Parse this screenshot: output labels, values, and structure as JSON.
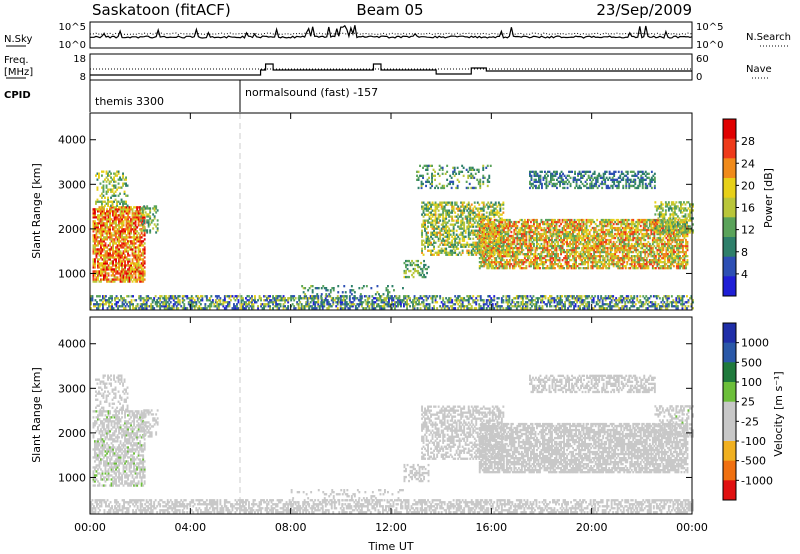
{
  "header": {
    "radar": "Saskatoon (fitACF)",
    "beam": "Beam 05",
    "date": "23/Sep/2009"
  },
  "status_panel": {
    "nsky_label": "N.Sky",
    "nsearch_label": "N.Search",
    "freq_label_top": "Freq.",
    "freq_label_unit": "[MHz]",
    "nave_label": "Nave",
    "cpid_label": "CPID",
    "noise_left_ticks": [
      "10^5",
      "10^0"
    ],
    "noise_right_ticks": [
      "10^5",
      "10^0"
    ],
    "freq_left_ticks": [
      "18",
      "8"
    ],
    "nave_right_ticks": [
      "60",
      "0"
    ],
    "cpid_segments": [
      {
        "label": "themis 3300",
        "start_hour": 0
      },
      {
        "label": "normalsound (fast) -157",
        "start_hour": 6
      }
    ]
  },
  "colors": {
    "power_scale": [
      "#1f1fd6",
      "#2d4fb4",
      "#2e7f6a",
      "#5aa35a",
      "#b9c63a",
      "#e7d018",
      "#f08a1a",
      "#ee3a1a",
      "#e00000"
    ],
    "velocity_scale": [
      "#1f2ea8",
      "#2a58a8",
      "#1f7a3c",
      "#6cbf3a",
      "#c8c8c8",
      "#c8c8c8",
      "#f0b020",
      "#f07010",
      "#e01010"
    ]
  },
  "chart_data": [
    {
      "type": "heatmap",
      "name": "power",
      "ylabel": "Slant Range [km]",
      "xlabel": "Time UT",
      "xlim": [
        0,
        24
      ],
      "ylim": [
        180,
        4600
      ],
      "y_ticks": [
        1000,
        2000,
        3000,
        4000
      ],
      "x_ticks": [
        "00:00",
        "04:00",
        "08:00",
        "12:00",
        "16:00",
        "20:00",
        "00:00"
      ],
      "colorbar": {
        "label": "Power [dB]",
        "ticks": [
          "28",
          "24",
          "20",
          "16",
          "12",
          "8",
          "4"
        ],
        "range": [
          0,
          30
        ]
      },
      "regions": [
        {
          "t0": 0.1,
          "t1": 2.2,
          "r0": 800,
          "r1": 2500,
          "value": 22,
          "spread": 8,
          "density": 0.75
        },
        {
          "t0": 0.2,
          "t1": 1.5,
          "r0": 2500,
          "r1": 3300,
          "value": 14,
          "spread": 6,
          "density": 0.35
        },
        {
          "t0": 2.0,
          "t1": 2.7,
          "r0": 1900,
          "r1": 2500,
          "value": 12,
          "spread": 5,
          "density": 0.4
        },
        {
          "t0": 0.0,
          "t1": 24.0,
          "r0": 200,
          "r1": 480,
          "value": 10,
          "spread": 8,
          "density": 0.55
        },
        {
          "t0": 13.2,
          "t1": 16.5,
          "r0": 1400,
          "r1": 2600,
          "value": 14,
          "spread": 7,
          "density": 0.55
        },
        {
          "t0": 15.5,
          "t1": 23.8,
          "r0": 1100,
          "r1": 2200,
          "value": 18,
          "spread": 8,
          "density": 0.7
        },
        {
          "t0": 17.5,
          "t1": 22.5,
          "r0": 2900,
          "r1": 3300,
          "value": 8,
          "spread": 4,
          "density": 0.5
        },
        {
          "t0": 22.5,
          "t1": 24.0,
          "r0": 1900,
          "r1": 2600,
          "value": 14,
          "spread": 5,
          "density": 0.5
        },
        {
          "t0": 12.5,
          "t1": 13.5,
          "r0": 900,
          "r1": 1300,
          "value": 12,
          "spread": 5,
          "density": 0.45
        },
        {
          "t0": 13.0,
          "t1": 16.0,
          "r0": 2900,
          "r1": 3400,
          "value": 10,
          "spread": 5,
          "density": 0.25
        },
        {
          "t0": 8.0,
          "t1": 12.5,
          "r0": 380,
          "r1": 700,
          "value": 9,
          "spread": 5,
          "density": 0.15
        }
      ]
    },
    {
      "type": "heatmap",
      "name": "velocity",
      "ylabel": "Slant Range [km]",
      "xlabel": "Time UT",
      "xlim": [
        0,
        24
      ],
      "ylim": [
        180,
        4600
      ],
      "y_ticks": [
        1000,
        2000,
        3000,
        4000
      ],
      "x_ticks": [
        "00:00",
        "04:00",
        "08:00",
        "12:00",
        "16:00",
        "20:00",
        "00:00"
      ],
      "colorbar": {
        "label": "Velocity [m s⁻¹]",
        "ticks": [
          "1000",
          "500",
          "100",
          "25",
          "-25",
          "-100",
          "-500",
          "-1000"
        ],
        "range": [
          -1200,
          1200
        ]
      },
      "regions": [
        {
          "t0": 0.1,
          "t1": 2.2,
          "r0": 800,
          "r1": 2500,
          "value": -30,
          "spread": 200,
          "density": 0.6
        },
        {
          "t0": 0.2,
          "t1": 1.5,
          "r0": 2500,
          "r1": 3300,
          "value": 0,
          "spread": 40,
          "density": 0.3
        },
        {
          "t0": 2.0,
          "t1": 2.7,
          "r0": 1900,
          "r1": 2500,
          "value": 0,
          "spread": 30,
          "density": 0.4
        },
        {
          "t0": 0.0,
          "t1": 24.0,
          "r0": 200,
          "r1": 480,
          "value": -150,
          "spread": 120,
          "density": 0.55
        },
        {
          "t0": 13.2,
          "t1": 16.5,
          "r0": 1400,
          "r1": 2600,
          "value": 0,
          "spread": 60,
          "density": 0.5
        },
        {
          "t0": 15.5,
          "t1": 23.8,
          "r0": 1100,
          "r1": 2200,
          "value": 0,
          "spread": 40,
          "density": 0.7
        },
        {
          "t0": 17.5,
          "t1": 22.5,
          "r0": 2900,
          "r1": 3300,
          "value": 0,
          "spread": 40,
          "density": 0.5
        },
        {
          "t0": 22.5,
          "t1": 24.0,
          "r0": 1900,
          "r1": 2600,
          "value": 60,
          "spread": 80,
          "density": 0.45
        },
        {
          "t0": 12.5,
          "t1": 13.5,
          "r0": 900,
          "r1": 1300,
          "value": -40,
          "spread": 40,
          "density": 0.4
        },
        {
          "t0": 8.0,
          "t1": 12.5,
          "r0": 380,
          "r1": 700,
          "value": -120,
          "spread": 60,
          "density": 0.15
        }
      ]
    }
  ]
}
